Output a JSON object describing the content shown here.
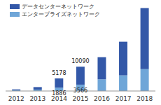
{
  "chart_data": {
    "type": "bar",
    "stacked": true,
    "categories": [
      "2012",
      "2013",
      "2014",
      "2015",
      "2016",
      "2017",
      "2018"
    ],
    "series": [
      {
        "name": "データセンターネットワーク",
        "color": "#3358a8",
        "values": [
          500,
          1400,
          5178,
          10090,
          12400,
          18900,
          34300
        ],
        "value_labels": [
          null,
          null,
          "5178",
          "10090",
          null,
          null,
          null
        ]
      },
      {
        "name": "エンタープライズネットワーク",
        "color": "#6fa6d8",
        "values": [
          400,
          800,
          1886,
          3566,
          6600,
          8800,
          12300
        ],
        "value_labels": [
          null,
          null,
          "1886",
          "3566",
          null,
          null,
          null
        ]
      }
    ],
    "ylim": [
      0,
      48000
    ],
    "tick_labels": "x",
    "legend": "upper left",
    "data_labels": true
  }
}
